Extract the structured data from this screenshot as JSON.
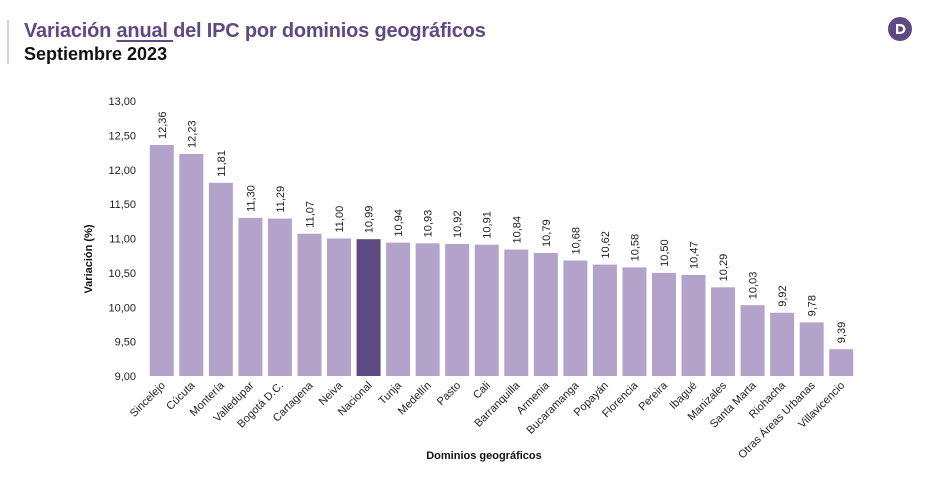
{
  "header": {
    "title_before": "Variación ",
    "title_underlined": "anual ",
    "title_after": "del IPC por dominios geográficos",
    "subtitle": "Septiembre 2023",
    "logo_icon": "dane-logo-icon",
    "logo_color": "#5e4a83"
  },
  "chart_data": {
    "type": "bar",
    "title": "Variación anual del IPC por dominios geográficos",
    "subtitle": "Septiembre 2023",
    "xlabel": "Dominios geográficos",
    "ylabel": "Variación (%)",
    "ylim": [
      9.0,
      13.0
    ],
    "yticks": [
      "9,00",
      "9,50",
      "10,00",
      "10,50",
      "11,00",
      "11,50",
      "12,00",
      "12,50",
      "13,00"
    ],
    "ytick_values": [
      9.0,
      9.5,
      10.0,
      10.5,
      11.0,
      11.5,
      12.0,
      12.5,
      13.0
    ],
    "categories": [
      "Sincelejo",
      "Cúcuta",
      "Montería",
      "Valledupar",
      "Bogotá D.C.",
      "Cartagena",
      "Neiva",
      "Nacional",
      "Tunja",
      "Medellín",
      "Pasto",
      "Cali",
      "Barranquilla",
      "Armenia",
      "Bucaramanga",
      "Popayán",
      "Florencia",
      "Pereira",
      "Ibagué",
      "Manizales",
      "Santa Marta",
      "Riohacha",
      "Otras Áreas Urbanas",
      "Villavicencio"
    ],
    "values": [
      12.36,
      12.23,
      11.81,
      11.3,
      11.29,
      11.07,
      11.0,
      10.99,
      10.94,
      10.93,
      10.92,
      10.91,
      10.84,
      10.79,
      10.68,
      10.62,
      10.58,
      10.5,
      10.47,
      10.29,
      10.03,
      9.92,
      9.78,
      9.39
    ],
    "value_labels": [
      "12,36",
      "12,23",
      "11,81",
      "11,30",
      "11,29",
      "11,07",
      "11,00",
      "10,99",
      "10,94",
      "10,93",
      "10,92",
      "10,91",
      "10,84",
      "10,79",
      "10,68",
      "10,62",
      "10,58",
      "10,50",
      "10,47",
      "10,29",
      "10,03",
      "9,92",
      "9,78",
      "9,39"
    ],
    "highlight": "Nacional",
    "bar_color": "#b3a3cb",
    "highlight_color": "#5e4a83",
    "grid": false
  }
}
